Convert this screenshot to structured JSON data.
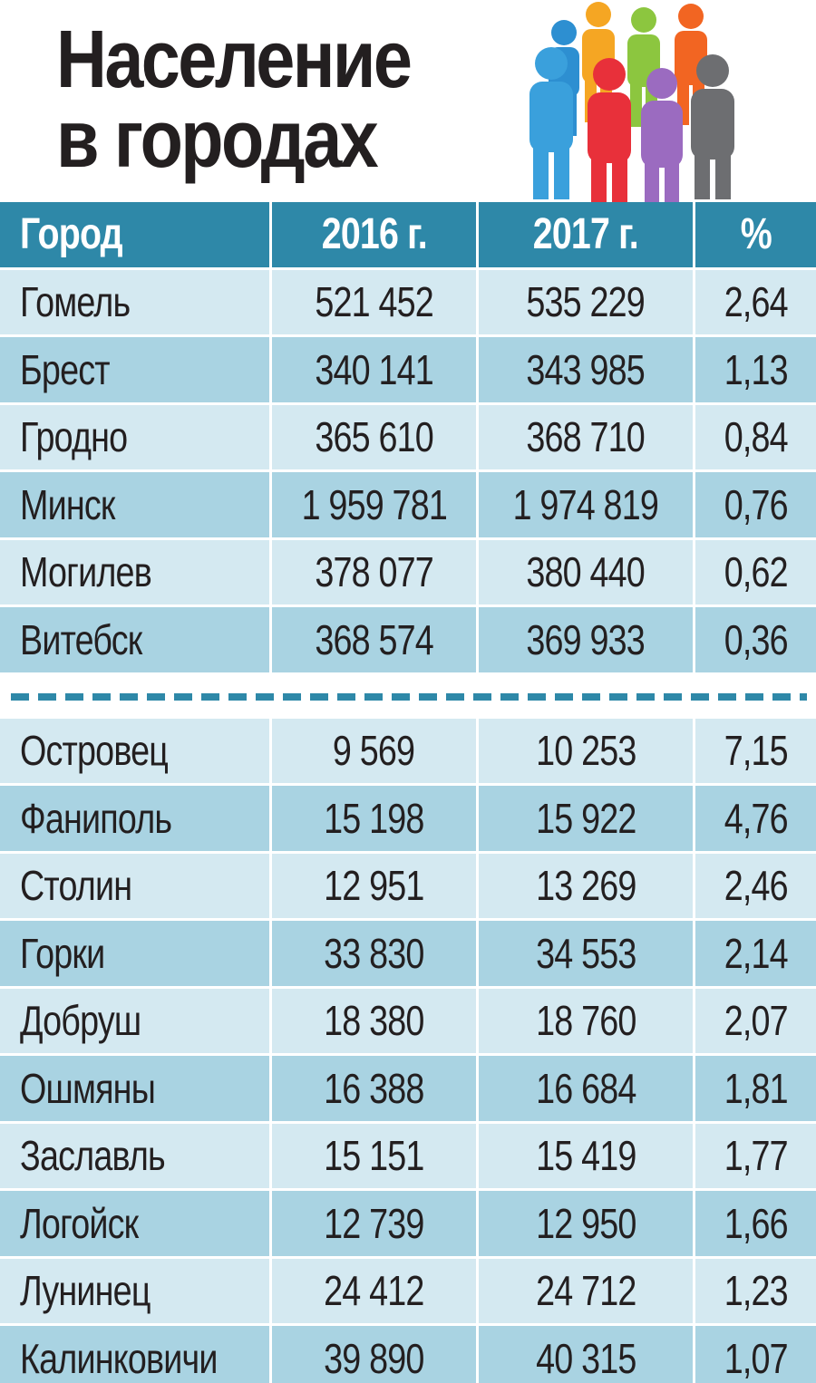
{
  "title": {
    "line1": "Население",
    "line2": "в городах"
  },
  "colors": {
    "header": "#2e88a8",
    "row_light": "#d4e9f1",
    "row_dark": "#a9d3e2"
  },
  "chart_data": {
    "type": "table",
    "columns": [
      "Город",
      "2016 г.",
      "2017 г.",
      "%"
    ],
    "big_cities": [
      [
        "Гомель",
        "521 452",
        "535 229",
        "2,64"
      ],
      [
        "Брест",
        "340 141",
        "343 985",
        "1,13"
      ],
      [
        "Гродно",
        "365 610",
        "368 710",
        "0,84"
      ],
      [
        "Минск",
        "1 959 781",
        "1 974 819",
        "0,76"
      ],
      [
        "Могилев",
        "378 077",
        "380 440",
        "0,62"
      ],
      [
        "Витебск",
        "368 574",
        "369 933",
        "0,36"
      ]
    ],
    "small_cities": [
      [
        "Островец",
        "9 569",
        "10 253",
        "7,15"
      ],
      [
        "Фаниполь",
        "15 198",
        "15 922",
        "4,76"
      ],
      [
        "Столин",
        "12 951",
        "13 269",
        "2,46"
      ],
      [
        "Горки",
        "33 830",
        "34 553",
        "2,14"
      ],
      [
        "Добруш",
        "18 380",
        "18 760",
        "2,07"
      ],
      [
        "Ошмяны",
        "16 388",
        "16 684",
        "1,81"
      ],
      [
        "Заславль",
        "15 151",
        "15 419",
        "1,77"
      ],
      [
        "Логойск",
        "12 739",
        "12 950",
        "1,66"
      ],
      [
        "Лунинец",
        "24 412",
        "24 712",
        "1,23"
      ],
      [
        "Калинковичи",
        "39 890",
        "40 315",
        "1,07"
      ]
    ]
  },
  "people_icon": "people-group-icon"
}
